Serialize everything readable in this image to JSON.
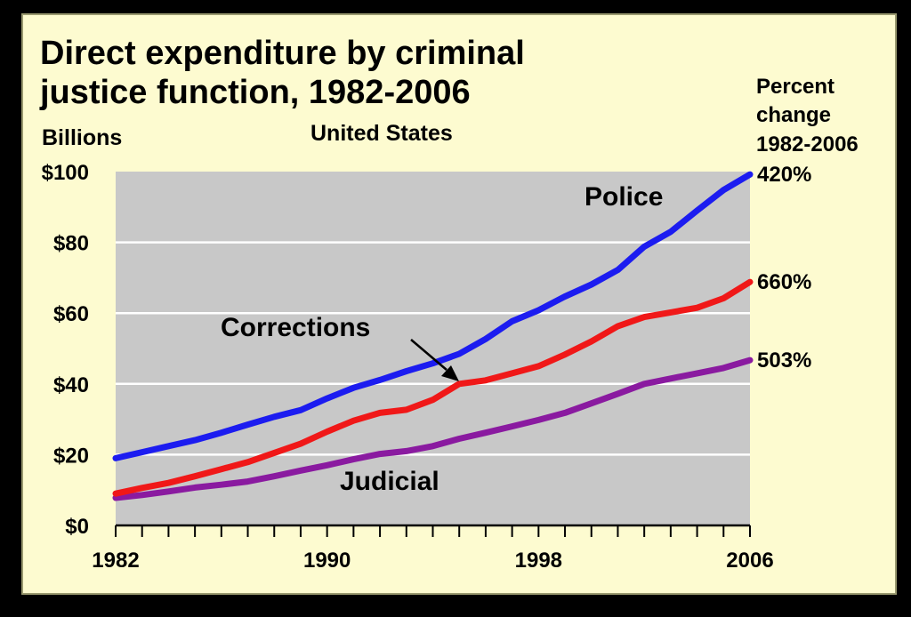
{
  "chart_data": {
    "type": "line",
    "title": "Direct expenditure by criminal justice function, 1982-2006",
    "title_lines": [
      "Direct expenditure by criminal",
      "justice function, 1982-2006"
    ],
    "subtitle": "United States",
    "ylabel": "Billions",
    "right_header": [
      "Percent",
      "change",
      "1982-2006"
    ],
    "xlim": [
      1982,
      2006
    ],
    "ylim": [
      0,
      100
    ],
    "x_tick_labels": [
      "1982",
      "1990",
      "1998",
      "2006"
    ],
    "x_tick_values": [
      1982,
      1990,
      1998,
      2006
    ],
    "y_tick_labels": [
      "$0",
      "$20",
      "$40",
      "$60",
      "$80",
      "$100"
    ],
    "y_tick_values": [
      0,
      20,
      40,
      60,
      80,
      100
    ],
    "grid": true,
    "x": [
      1982,
      1983,
      1984,
      1985,
      1986,
      1987,
      1988,
      1989,
      1990,
      1991,
      1992,
      1993,
      1994,
      1995,
      1996,
      1997,
      1998,
      1999,
      2000,
      2001,
      2002,
      2003,
      2004,
      2005,
      2006
    ],
    "series": [
      {
        "name": "Police",
        "color": "#1c1cf0",
        "percent_change": "420%",
        "values": [
          19.0,
          20.7,
          22.4,
          24.1,
          26.2,
          28.5,
          30.7,
          32.6,
          35.9,
          38.9,
          41.1,
          43.6,
          45.8,
          48.5,
          52.7,
          57.7,
          60.8,
          64.7,
          68.1,
          72.2,
          78.8,
          83.0,
          89.0,
          94.8,
          99.2
        ]
      },
      {
        "name": "Corrections",
        "color": "#f01818",
        "percent_change": "660%",
        "values": [
          9.0,
          10.6,
          12.0,
          13.9,
          15.9,
          17.9,
          20.5,
          23.1,
          26.5,
          29.6,
          31.8,
          32.7,
          35.5,
          40.0,
          41.0,
          43.0,
          45.0,
          48.3,
          52.0,
          56.3,
          58.9,
          60.2,
          61.5,
          64.2,
          68.8
        ]
      },
      {
        "name": "Judicial",
        "color": "#8a1aa0",
        "percent_change": "503%",
        "values": [
          7.8,
          8.6,
          9.6,
          10.7,
          11.5,
          12.4,
          13.9,
          15.5,
          17.0,
          18.7,
          20.2,
          21.0,
          22.4,
          24.5,
          26.2,
          28.0,
          29.8,
          31.8,
          34.5,
          37.2,
          40.0,
          41.5,
          43.0,
          44.5,
          46.7
        ]
      }
    ],
    "annotations": [
      {
        "text": "Police",
        "series": "Police"
      },
      {
        "text": "Corrections",
        "series": "Corrections"
      },
      {
        "text": "Judicial",
        "series": "Judicial"
      }
    ],
    "colors": {
      "page_background": "#000000",
      "card_background": "#fdfbd0",
      "plot_background": "#c8c8c8",
      "gridline": "#ffffff"
    }
  }
}
